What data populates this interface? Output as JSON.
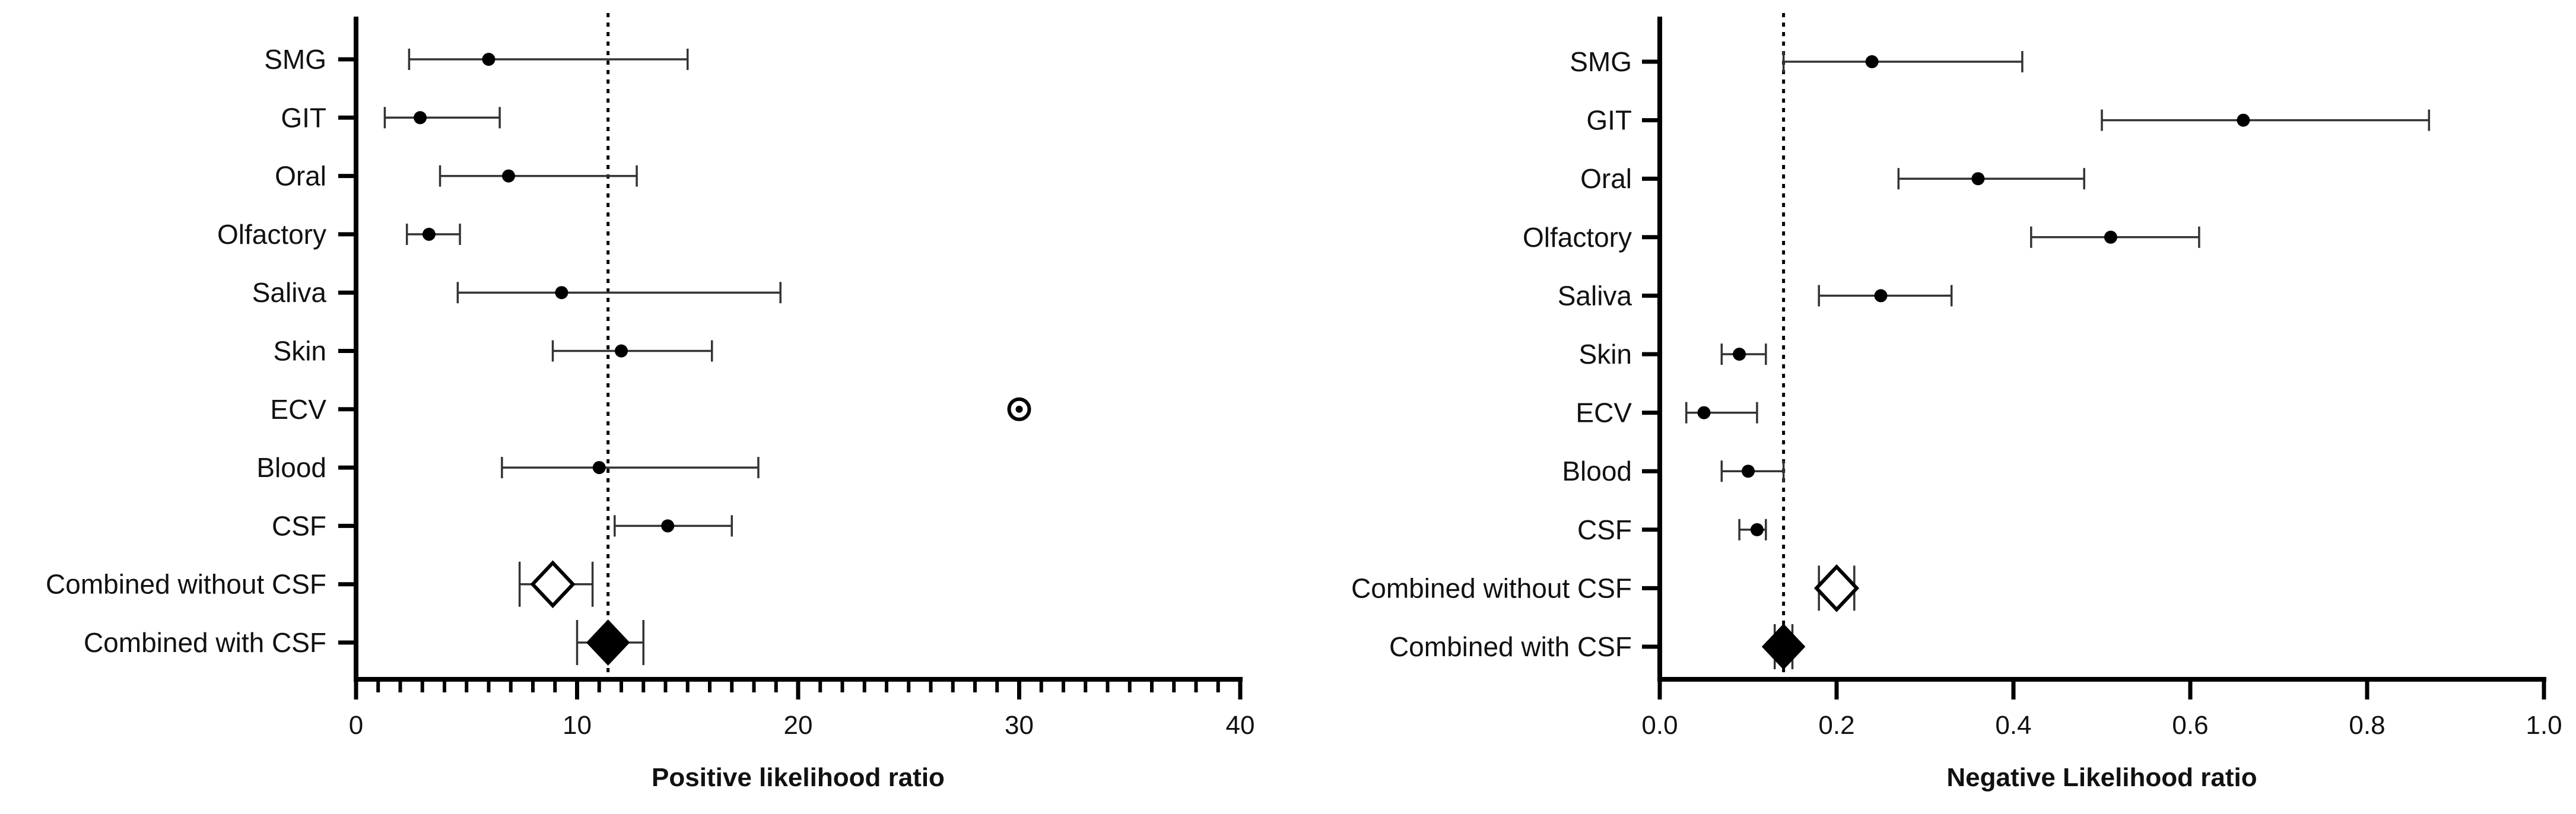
{
  "chart_data": [
    {
      "type": "forest",
      "xlabel": "Positive likelihood ratio",
      "xlim": [
        0,
        40
      ],
      "major_ticks": [
        0,
        10,
        20,
        30,
        40
      ],
      "tick_labels": [
        "0",
        "10",
        "20",
        "30",
        "40"
      ],
      "minor_tick_step": 1,
      "reference_line": 11.4,
      "categories": [
        "SMG",
        "GIT",
        "Oral",
        "Olfactory",
        "Saliva",
        "Skin",
        "ECV",
        "Blood",
        "CSF",
        "Combined without CSF",
        "Combined with CSF"
      ],
      "points": [
        {
          "label": "SMG",
          "estimate": 6.0,
          "lower": 2.4,
          "upper": 15.0,
          "marker": "dot"
        },
        {
          "label": "GIT",
          "estimate": 2.9,
          "lower": 1.3,
          "upper": 6.5,
          "marker": "dot"
        },
        {
          "label": "Oral",
          "estimate": 6.9,
          "lower": 3.8,
          "upper": 12.7,
          "marker": "dot"
        },
        {
          "label": "Olfactory",
          "estimate": 3.3,
          "lower": 2.3,
          "upper": 4.7,
          "marker": "dot"
        },
        {
          "label": "Saliva",
          "estimate": 9.3,
          "lower": 4.6,
          "upper": 19.2,
          "marker": "dot"
        },
        {
          "label": "Skin",
          "estimate": 12.0,
          "lower": 8.9,
          "upper": 16.1,
          "marker": "dot"
        },
        {
          "label": "ECV",
          "estimate": 30.0,
          "lower": null,
          "upper": null,
          "marker": "circled-dot"
        },
        {
          "label": "Blood",
          "estimate": 11.0,
          "lower": 6.6,
          "upper": 18.2,
          "marker": "dot"
        },
        {
          "label": "CSF",
          "estimate": 14.1,
          "lower": 11.7,
          "upper": 17.0,
          "marker": "dot"
        },
        {
          "label": "Combined without CSF",
          "estimate": 8.9,
          "lower": 7.4,
          "upper": 10.7,
          "marker": "open-diamond"
        },
        {
          "label": "Combined with CSF",
          "estimate": 11.4,
          "lower": 10.0,
          "upper": 13.0,
          "marker": "filled-diamond"
        }
      ]
    },
    {
      "type": "forest",
      "xlabel": "Negative Likelihood ratio",
      "xlim": [
        0,
        1.0
      ],
      "major_ticks": [
        0,
        0.2,
        0.4,
        0.6,
        0.8,
        1.0
      ],
      "tick_labels": [
        "0.0",
        "0.2",
        "0.4",
        "0.6",
        "0.8",
        "1.0"
      ],
      "minor_tick_step": null,
      "reference_line": 0.14,
      "categories": [
        "SMG",
        "GIT",
        "Oral",
        "Olfactory",
        "Saliva",
        "Skin",
        "ECV",
        "Blood",
        "CSF",
        "Combined without CSF",
        "Combined with CSF"
      ],
      "points": [
        {
          "label": "SMG",
          "estimate": 0.24,
          "lower": 0.14,
          "upper": 0.41,
          "marker": "dot"
        },
        {
          "label": "GIT",
          "estimate": 0.66,
          "lower": 0.5,
          "upper": 0.87,
          "marker": "dot"
        },
        {
          "label": "Oral",
          "estimate": 0.36,
          "lower": 0.27,
          "upper": 0.48,
          "marker": "dot"
        },
        {
          "label": "Olfactory",
          "estimate": 0.51,
          "lower": 0.42,
          "upper": 0.61,
          "marker": "dot"
        },
        {
          "label": "Saliva",
          "estimate": 0.25,
          "lower": 0.18,
          "upper": 0.33,
          "marker": "dot"
        },
        {
          "label": "Skin",
          "estimate": 0.09,
          "lower": 0.07,
          "upper": 0.12,
          "marker": "dot"
        },
        {
          "label": "ECV",
          "estimate": 0.05,
          "lower": 0.03,
          "upper": 0.11,
          "marker": "dot"
        },
        {
          "label": "Blood",
          "estimate": 0.1,
          "lower": 0.07,
          "upper": 0.14,
          "marker": "dot"
        },
        {
          "label": "CSF",
          "estimate": 0.11,
          "lower": 0.09,
          "upper": 0.12,
          "marker": "dot"
        },
        {
          "label": "Combined without CSF",
          "estimate": 0.2,
          "lower": 0.18,
          "upper": 0.22,
          "marker": "open-diamond"
        },
        {
          "label": "Combined with CSF",
          "estimate": 0.14,
          "lower": 0.13,
          "upper": 0.15,
          "marker": "filled-diamond"
        }
      ]
    }
  ]
}
